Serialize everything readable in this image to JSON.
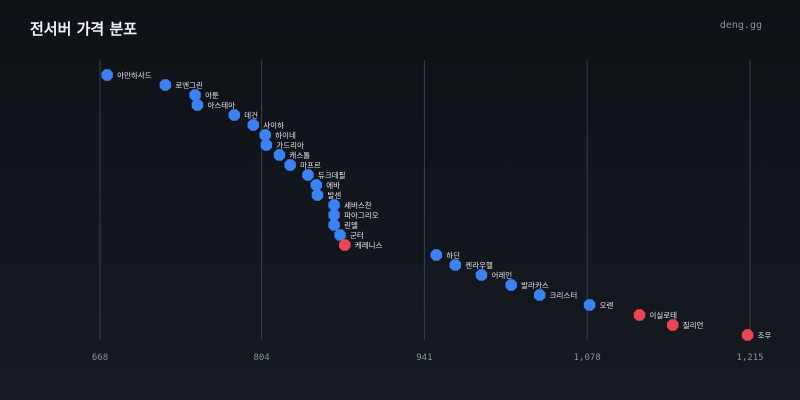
{
  "header": {
    "title": "전서버 가격 분포",
    "brand": "deng.gg"
  },
  "colors": {
    "normal": "#3b82f6",
    "highlight": "#ef4453",
    "grid": "#3a414b",
    "label": "#e6e9ee",
    "tick": "#8b929b"
  },
  "chart_data": {
    "type": "scatter",
    "title": "전서버 가격 분포",
    "xlabel": "",
    "ylabel": "",
    "xlim": [
      668,
      1215
    ],
    "x_ticks": [
      668,
      804,
      941,
      1078,
      1215
    ],
    "x_tick_labels": [
      "668",
      "804",
      "941",
      "1,078",
      "1,215"
    ],
    "grid": "vertical",
    "points": [
      {
        "label": "아만하사드",
        "x": 674,
        "highlight": false
      },
      {
        "label": "로엔그린",
        "x": 723,
        "highlight": false
      },
      {
        "label": "아툰",
        "x": 748,
        "highlight": false
      },
      {
        "label": "아스테아",
        "x": 750,
        "highlight": false
      },
      {
        "label": "데건",
        "x": 781,
        "highlight": false
      },
      {
        "label": "사이하",
        "x": 797,
        "highlight": false
      },
      {
        "label": "하이네",
        "x": 807,
        "highlight": false
      },
      {
        "label": "가드리아",
        "x": 808,
        "highlight": false
      },
      {
        "label": "캐스톨",
        "x": 819,
        "highlight": false
      },
      {
        "label": "마프르",
        "x": 828,
        "highlight": false
      },
      {
        "label": "듀크데필",
        "x": 843,
        "highlight": false
      },
      {
        "label": "에바",
        "x": 850,
        "highlight": false
      },
      {
        "label": "발센",
        "x": 851,
        "highlight": false
      },
      {
        "label": "세바스찬",
        "x": 865,
        "highlight": false
      },
      {
        "label": "파아그리오",
        "x": 865,
        "highlight": false
      },
      {
        "label": "린델",
        "x": 865,
        "highlight": false
      },
      {
        "label": "군터",
        "x": 870,
        "highlight": false
      },
      {
        "label": "케레니스",
        "x": 874,
        "highlight": true
      },
      {
        "label": "하딘",
        "x": 951,
        "highlight": false
      },
      {
        "label": "켄라우헬",
        "x": 967,
        "highlight": false
      },
      {
        "label": "어레인",
        "x": 989,
        "highlight": false
      },
      {
        "label": "발라카스",
        "x": 1014,
        "highlight": false
      },
      {
        "label": "크리스터",
        "x": 1038,
        "highlight": false
      },
      {
        "label": "오렌",
        "x": 1080,
        "highlight": false
      },
      {
        "label": "이실로테",
        "x": 1122,
        "highlight": true
      },
      {
        "label": "질리언",
        "x": 1150,
        "highlight": true
      },
      {
        "label": "조우",
        "x": 1213,
        "highlight": true
      }
    ]
  }
}
